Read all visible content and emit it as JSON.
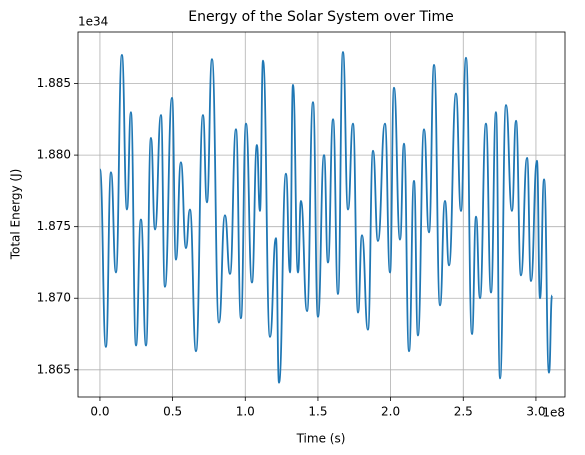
{
  "chart_data": {
    "type": "line",
    "title": "Energy of the Solar System over Time",
    "x_label": "Time (s)",
    "y_label": "Total Energy (J)",
    "x_offset_label": "1e8",
    "y_offset_label": "1e34",
    "grid": true,
    "xlim": [
      -0.151,
      3.2
    ],
    "ylim": [
      1.8631,
      1.8886
    ],
    "xticks": [
      {
        "value": 0,
        "label": "0.0"
      },
      0.5,
      {
        "value": 1,
        "label": "1.0"
      },
      1.5,
      {
        "value": 2,
        "label": "2.0"
      },
      2.5,
      {
        "value": 3,
        "label": "3.0"
      }
    ],
    "yticks": [
      1.865,
      {
        "value": 1.87,
        "label": "1.870"
      },
      1.875,
      {
        "value": 1.88,
        "label": "1.880"
      },
      1.885
    ],
    "x": [
      0,
      0.041,
      0.076,
      0.11,
      0.151,
      0.186,
      0.213,
      0.248,
      0.282,
      0.317,
      0.351,
      0.379,
      0.42,
      0.447,
      0.496,
      0.523,
      0.557,
      0.592,
      0.619,
      0.661,
      0.709,
      0.736,
      0.771,
      0.819,
      0.86,
      0.895,
      0.936,
      0.97,
      1.005,
      1.046,
      1.08,
      1.101,
      1.122,
      1.17,
      1.211,
      1.232,
      1.28,
      1.308,
      1.328,
      1.363,
      1.383,
      1.425,
      1.466,
      1.5,
      1.542,
      1.569,
      1.604,
      1.638,
      1.672,
      1.707,
      1.741,
      1.776,
      1.803,
      1.844,
      1.879,
      1.913,
      1.961,
      1.996,
      2.023,
      2.065,
      2.092,
      2.127,
      2.161,
      2.188,
      2.23,
      2.264,
      2.299,
      2.34,
      2.374,
      2.402,
      2.45,
      2.484,
      2.519,
      2.56,
      2.588,
      2.615,
      2.656,
      2.691,
      2.725,
      2.753,
      2.794,
      2.835,
      2.863,
      2.897,
      2.939,
      2.966,
      3.007,
      3.028,
      3.056,
      3.09,
      3.111
    ],
    "series": [
      {
        "color": "#1f77b4",
        "values": [
          1.879,
          1.8666,
          1.8788,
          1.8718,
          1.887,
          1.8762,
          1.883,
          1.8667,
          1.8755,
          1.8667,
          1.8812,
          1.8748,
          1.8828,
          1.8708,
          1.884,
          1.8727,
          1.8795,
          1.8735,
          1.8762,
          1.8663,
          1.8828,
          1.8767,
          1.8867,
          1.8683,
          1.8758,
          1.8717,
          1.8818,
          1.8686,
          1.8822,
          1.8711,
          1.8807,
          1.8761,
          1.8866,
          1.8673,
          1.8742,
          1.8641,
          1.8787,
          1.8718,
          1.8849,
          1.8718,
          1.8768,
          1.8691,
          1.8837,
          1.8687,
          1.88,
          1.8725,
          1.8825,
          1.8703,
          1.8872,
          1.8762,
          1.8822,
          1.869,
          1.8744,
          1.8678,
          1.8803,
          1.874,
          1.8822,
          1.8718,
          1.8847,
          1.8741,
          1.8808,
          1.8663,
          1.8782,
          1.8674,
          1.8818,
          1.8746,
          1.8863,
          1.8695,
          1.8768,
          1.8723,
          1.8843,
          1.8761,
          1.8868,
          1.8675,
          1.8757,
          1.87,
          1.8822,
          1.8704,
          1.883,
          1.8644,
          1.8835,
          1.8761,
          1.8824,
          1.8716,
          1.8798,
          1.8712,
          1.8796,
          1.87,
          1.8783,
          1.8648,
          1.8702
        ]
      }
    ]
  }
}
